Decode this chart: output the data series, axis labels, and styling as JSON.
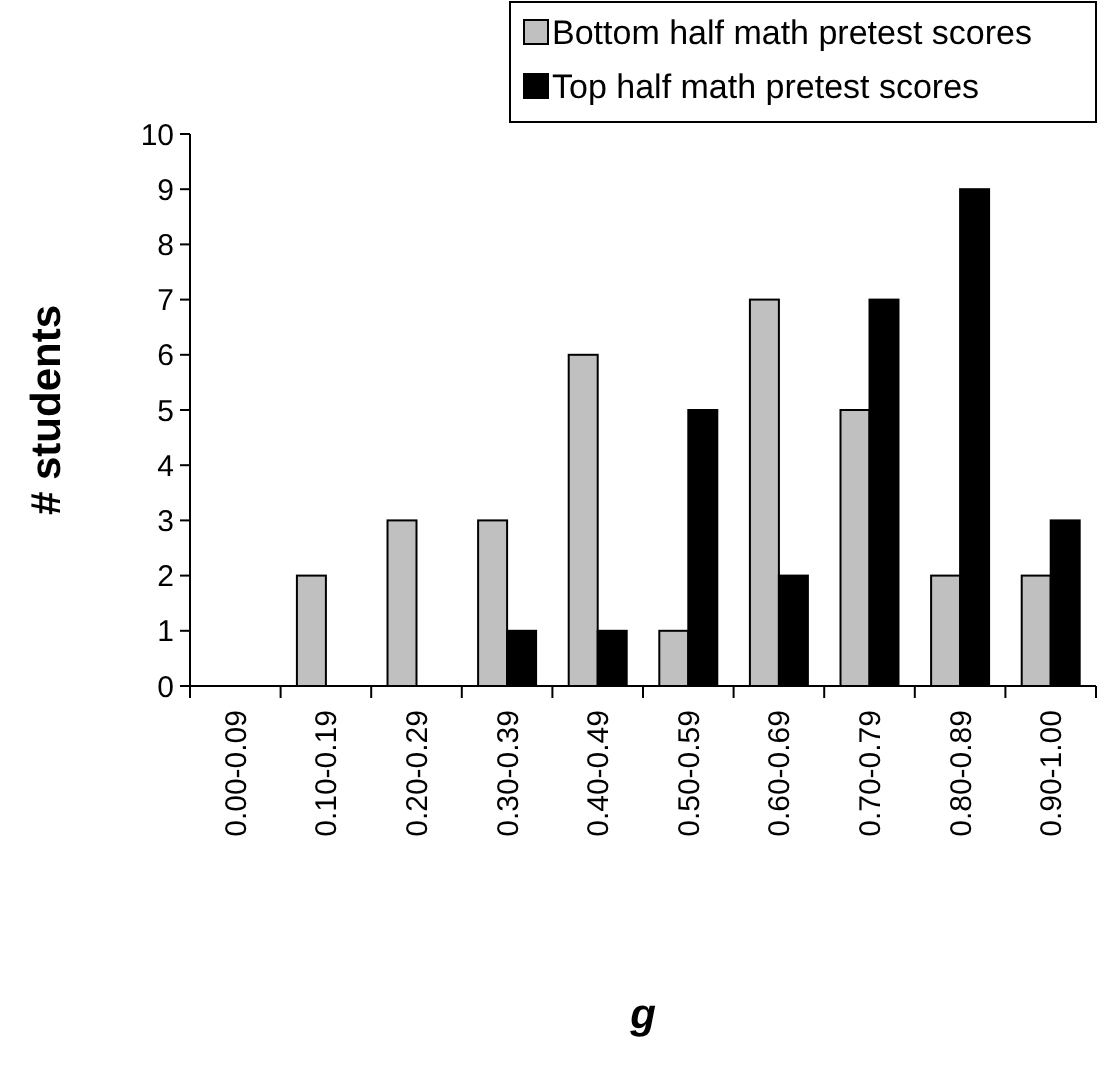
{
  "chart_data": {
    "type": "bar",
    "xlabel": "g",
    "ylabel": "# students",
    "categories": [
      "0.00-0.09",
      "0.10-0.19",
      "0.20-0.29",
      "0.30-0.39",
      "0.40-0.49",
      "0.50-0.59",
      "0.60-0.69",
      "0.70-0.79",
      "0.80-0.89",
      "0.90-1.00"
    ],
    "series": [
      {
        "name": "Bottom half math pretest scores",
        "color": "#c0c0c0",
        "values": [
          0,
          2,
          3,
          3,
          6,
          1,
          7,
          5,
          2,
          2
        ]
      },
      {
        "name": "Top half math pretest scores",
        "color": "#000000",
        "values": [
          0,
          0,
          0,
          1,
          1,
          5,
          2,
          7,
          9,
          3
        ]
      }
    ],
    "ylim": [
      0,
      10
    ],
    "yticks": [
      0,
      1,
      2,
      3,
      4,
      5,
      6,
      7,
      8,
      9,
      10
    ],
    "grid": false,
    "legend": "top right"
  }
}
